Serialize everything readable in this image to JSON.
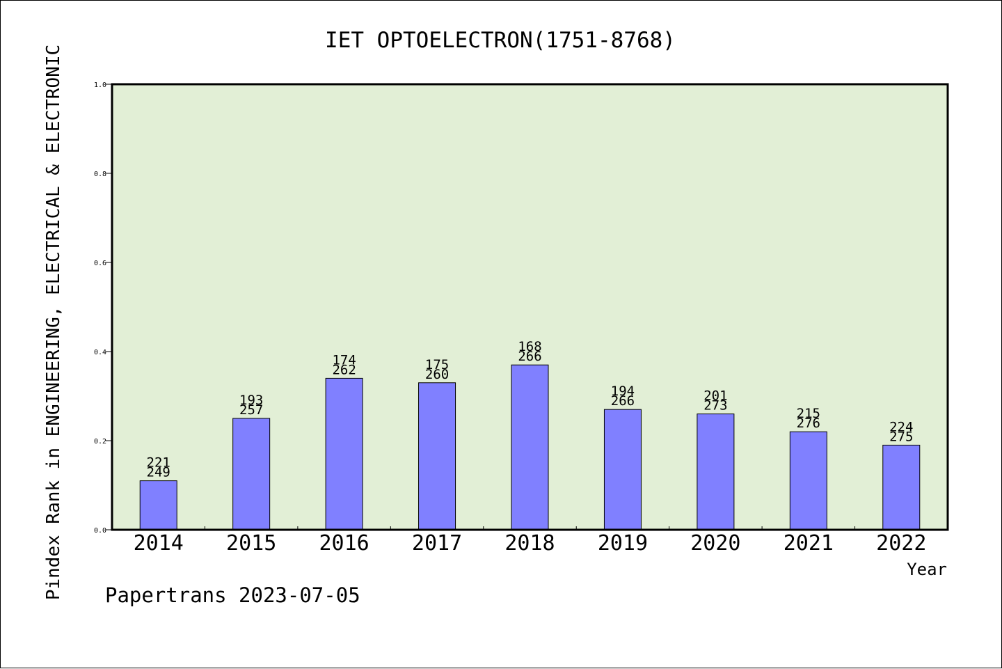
{
  "chart_data": {
    "type": "bar",
    "title": "IET OPTOELECTRON(1751-8768)",
    "xlabel": "Year",
    "ylabel": "Pindex Rank in ENGINEERING, ELECTRICAL & ELECTRONIC",
    "footer": "Papertrans 2023-07-05",
    "categories": [
      "2014",
      "2015",
      "2016",
      "2017",
      "2018",
      "2019",
      "2020",
      "2021",
      "2022"
    ],
    "values": [
      0.11,
      0.25,
      0.34,
      0.33,
      0.37,
      0.27,
      0.26,
      0.22,
      0.19
    ],
    "labels_top": [
      "221",
      "193",
      "174",
      "175",
      "168",
      "194",
      "201",
      "215",
      "224"
    ],
    "labels_bottom": [
      "249",
      "257",
      "262",
      "260",
      "266",
      "266",
      "273",
      "276",
      "275"
    ],
    "ylim": [
      0,
      1.0
    ],
    "yticks": [
      "0.0",
      "0.2",
      "0.4",
      "0.6",
      "0.8",
      "1.0"
    ],
    "ytick_values": [
      0,
      0.2,
      0.4,
      0.6,
      0.8,
      1.0
    ],
    "grid": false,
    "colors": {
      "plot_background": "#e2efd6",
      "bar_fill": "#8080ff",
      "bar_stroke": "#000000"
    }
  }
}
